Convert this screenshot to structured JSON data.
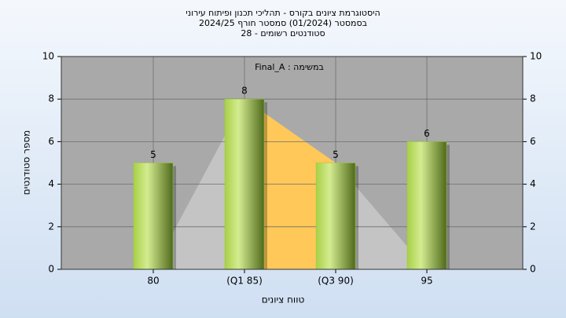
{
  "chart_data": {
    "type": "bar",
    "title": "היסטוגרמת ציונים בקורס - תהליכי תכנון ופיתוח עירוני",
    "subtitle": "בסמסטר  (01/2024)  סמסטר חורף 2024/25",
    "subtitle2": "סטודנטים רשומים - 28",
    "annotation": "Final_A : במשימה",
    "x_label": "טווח ציונים",
    "y_label": "מספר סטודנטים",
    "categories": [
      "80",
      "(Q1 85)",
      "(Q3 90)",
      "95"
    ],
    "values": [
      5,
      8,
      5,
      6
    ],
    "color": "#9acd32",
    "area": {
      "values": [
        0,
        8,
        5,
        0
      ],
      "color": "#c4c4c4",
      "highlight_color": "#ffc858"
    },
    "ylim": [
      0,
      10
    ],
    "yticks": [
      0,
      2,
      4,
      6,
      8,
      10
    ],
    "y2lim": [
      0,
      10
    ],
    "y2ticks": [
      0,
      2,
      4,
      6,
      8,
      10
    ],
    "grid": true
  }
}
